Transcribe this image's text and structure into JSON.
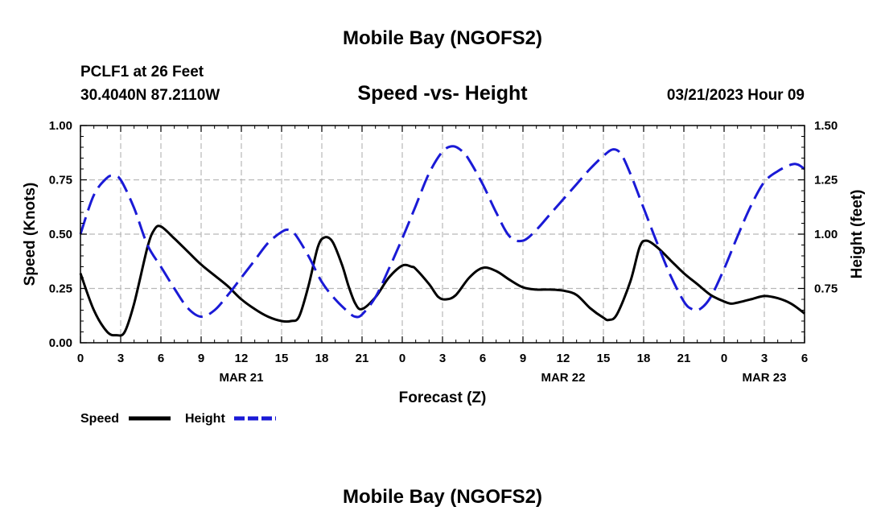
{
  "page": {
    "title_top": "Mobile Bay (NGOFS2)",
    "title_bottom": "Mobile Bay (NGOFS2)",
    "station_line": "PCLF1 at 26 Feet",
    "coords_line": "30.4040N  87.2110W",
    "date_line": "03/21/2023 Hour 09"
  },
  "chart_data": {
    "type": "line",
    "title": "Speed -vs- Height",
    "xlabel": "Forecast (Z)",
    "ylabel_left": "Speed (Knots)",
    "ylabel_right": "Height (feet)",
    "x_range_hours": [
      0,
      54
    ],
    "ylim_left": [
      0,
      1
    ],
    "ylim_right": [
      0.5,
      1.5
    ],
    "x_ticks": [
      {
        "h": 0,
        "label": "0"
      },
      {
        "h": 3,
        "label": "3"
      },
      {
        "h": 6,
        "label": "6"
      },
      {
        "h": 9,
        "label": "9"
      },
      {
        "h": 12,
        "label": "12"
      },
      {
        "h": 15,
        "label": "15"
      },
      {
        "h": 18,
        "label": "18"
      },
      {
        "h": 21,
        "label": "21"
      },
      {
        "h": 24,
        "label": "0"
      },
      {
        "h": 27,
        "label": "3"
      },
      {
        "h": 30,
        "label": "6"
      },
      {
        "h": 33,
        "label": "9"
      },
      {
        "h": 36,
        "label": "12"
      },
      {
        "h": 39,
        "label": "15"
      },
      {
        "h": 42,
        "label": "18"
      },
      {
        "h": 45,
        "label": "21"
      },
      {
        "h": 48,
        "label": "0"
      },
      {
        "h": 51,
        "label": "3"
      },
      {
        "h": 54,
        "label": "6"
      }
    ],
    "date_labels": [
      {
        "h": 12,
        "label": "MAR 21"
      },
      {
        "h": 36,
        "label": "MAR 22"
      },
      {
        "h": 51,
        "label": "MAR 23"
      }
    ],
    "y_ticks_left": [
      {
        "v": 0.0,
        "label": "0.00"
      },
      {
        "v": 0.25,
        "label": "0.25"
      },
      {
        "v": 0.5,
        "label": "0.50"
      },
      {
        "v": 0.75,
        "label": "0.75"
      },
      {
        "v": 1.0,
        "label": "1.00"
      }
    ],
    "y_ticks_right": [
      {
        "v": 0.75,
        "label": "0.75"
      },
      {
        "v": 1.0,
        "label": "1.00"
      },
      {
        "v": 1.25,
        "label": "1.25"
      },
      {
        "v": 1.5,
        "label": "1.50"
      }
    ],
    "series": [
      {
        "name": "Speed",
        "axis": "left",
        "color": "#000000",
        "dashed": false,
        "points": [
          [
            0,
            0.32
          ],
          [
            1,
            0.15
          ],
          [
            2,
            0.05
          ],
          [
            2.7,
            0.035
          ],
          [
            3.3,
            0.05
          ],
          [
            4,
            0.18
          ],
          [
            5,
            0.44
          ],
          [
            5.5,
            0.52
          ],
          [
            6,
            0.535
          ],
          [
            7,
            0.48
          ],
          [
            8,
            0.42
          ],
          [
            9,
            0.36
          ],
          [
            10,
            0.31
          ],
          [
            11,
            0.26
          ],
          [
            12,
            0.2
          ],
          [
            13,
            0.155
          ],
          [
            14,
            0.12
          ],
          [
            15,
            0.1
          ],
          [
            15.7,
            0.1
          ],
          [
            16.3,
            0.12
          ],
          [
            17,
            0.26
          ],
          [
            17.7,
            0.44
          ],
          [
            18.2,
            0.485
          ],
          [
            18.8,
            0.465
          ],
          [
            19.5,
            0.36
          ],
          [
            20,
            0.26
          ],
          [
            20.5,
            0.18
          ],
          [
            21,
            0.155
          ],
          [
            22,
            0.21
          ],
          [
            23,
            0.3
          ],
          [
            24,
            0.355
          ],
          [
            24.7,
            0.35
          ],
          [
            25,
            0.34
          ],
          [
            26,
            0.27
          ],
          [
            26.7,
            0.21
          ],
          [
            27.3,
            0.2
          ],
          [
            28,
            0.22
          ],
          [
            29,
            0.3
          ],
          [
            30,
            0.345
          ],
          [
            31,
            0.33
          ],
          [
            32,
            0.29
          ],
          [
            33,
            0.255
          ],
          [
            34,
            0.245
          ],
          [
            35,
            0.245
          ],
          [
            36,
            0.24
          ],
          [
            37,
            0.22
          ],
          [
            38,
            0.16
          ],
          [
            39,
            0.115
          ],
          [
            39.4,
            0.105
          ],
          [
            40,
            0.13
          ],
          [
            41,
            0.28
          ],
          [
            41.7,
            0.44
          ],
          [
            42.2,
            0.47
          ],
          [
            43,
            0.44
          ],
          [
            44,
            0.38
          ],
          [
            45,
            0.32
          ],
          [
            46,
            0.27
          ],
          [
            47,
            0.22
          ],
          [
            48,
            0.19
          ],
          [
            48.5,
            0.18
          ],
          [
            49,
            0.185
          ],
          [
            50,
            0.2
          ],
          [
            51,
            0.215
          ],
          [
            52,
            0.205
          ],
          [
            53,
            0.18
          ],
          [
            54,
            0.135
          ]
        ]
      },
      {
        "name": "Height",
        "axis": "right",
        "color": "#1a1ad6",
        "dashed": true,
        "points": [
          [
            0,
            1.0
          ],
          [
            1,
            1.18
          ],
          [
            2,
            1.26
          ],
          [
            2.5,
            1.265
          ],
          [
            3,
            1.25
          ],
          [
            4,
            1.12
          ],
          [
            5,
            0.95
          ],
          [
            6,
            0.85
          ],
          [
            7,
            0.75
          ],
          [
            8,
            0.66
          ],
          [
            9,
            0.62
          ],
          [
            10,
            0.65
          ],
          [
            11,
            0.72
          ],
          [
            12,
            0.8
          ],
          [
            13,
            0.88
          ],
          [
            14,
            0.96
          ],
          [
            15,
            1.01
          ],
          [
            15.5,
            1.02
          ],
          [
            16,
            1.0
          ],
          [
            17,
            0.9
          ],
          [
            18,
            0.78
          ],
          [
            19,
            0.7
          ],
          [
            20,
            0.64
          ],
          [
            20.5,
            0.62
          ],
          [
            21,
            0.63
          ],
          [
            22,
            0.71
          ],
          [
            23,
            0.84
          ],
          [
            24,
            0.98
          ],
          [
            25,
            1.13
          ],
          [
            26,
            1.28
          ],
          [
            27,
            1.38
          ],
          [
            27.8,
            1.405
          ],
          [
            28.5,
            1.38
          ],
          [
            29,
            1.34
          ],
          [
            30,
            1.23
          ],
          [
            31,
            1.1
          ],
          [
            32,
            0.99
          ],
          [
            33,
            0.97
          ],
          [
            34,
            1.02
          ],
          [
            35,
            1.09
          ],
          [
            36,
            1.16
          ],
          [
            37,
            1.23
          ],
          [
            38,
            1.3
          ],
          [
            39,
            1.36
          ],
          [
            39.7,
            1.39
          ],
          [
            40.3,
            1.37
          ],
          [
            41,
            1.28
          ],
          [
            42,
            1.12
          ],
          [
            43,
            0.96
          ],
          [
            44,
            0.81
          ],
          [
            45,
            0.69
          ],
          [
            45.6,
            0.655
          ],
          [
            46.2,
            0.655
          ],
          [
            47,
            0.71
          ],
          [
            48,
            0.84
          ],
          [
            49,
            0.99
          ],
          [
            50,
            1.13
          ],
          [
            51,
            1.24
          ],
          [
            52,
            1.29
          ],
          [
            53,
            1.32
          ],
          [
            53.5,
            1.32
          ],
          [
            54,
            1.3
          ]
        ]
      }
    ],
    "legend": [
      {
        "label": "Speed",
        "color": "#000000",
        "dashed": false
      },
      {
        "label": "Height",
        "color": "#1a1ad6",
        "dashed": true
      }
    ]
  }
}
